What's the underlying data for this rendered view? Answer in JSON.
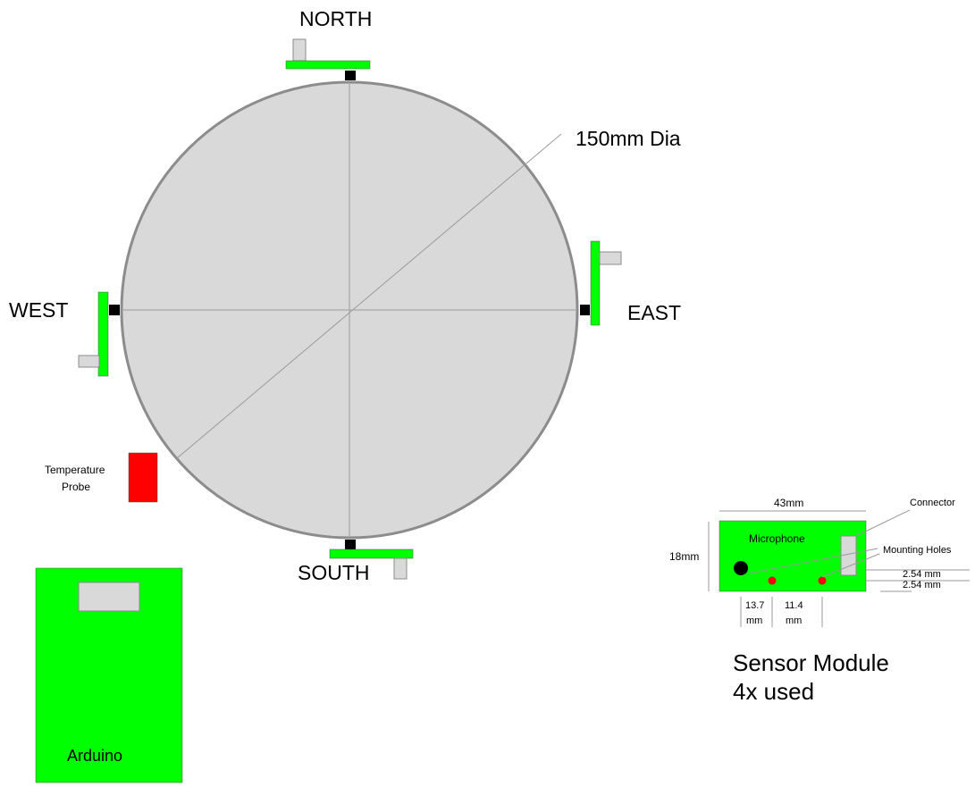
{
  "labels": {
    "north": "NORTH",
    "south": "SOUTH",
    "east": "EAST",
    "west": "WEST",
    "diameter": "150mm Dia",
    "temperature_line1": "Temperature",
    "temperature_line2": "Probe",
    "arduino": "Arduino"
  },
  "sensor_module": {
    "width_label": "43mm",
    "height_label": "18mm",
    "microphone_label": "Microphone",
    "connector_label": "Connector",
    "mounting_holes_label": "Mounting Holes",
    "offset_1": "2.54 mm",
    "offset_2": "2.54 mm",
    "dim_1_line1": "13.7",
    "dim_1_line2": "mm",
    "dim_2_line1": "11.4",
    "dim_2_line2": "mm",
    "title_line1": "Sensor Module",
    "title_line2": "4x used"
  },
  "colors": {
    "board": "#00ff00",
    "plate": "#d9d9d9",
    "plate_border": "#8c8c8c",
    "probe": "#ff0000",
    "hole": "#ff0000",
    "mic": "#000000",
    "mount": "#000000"
  }
}
